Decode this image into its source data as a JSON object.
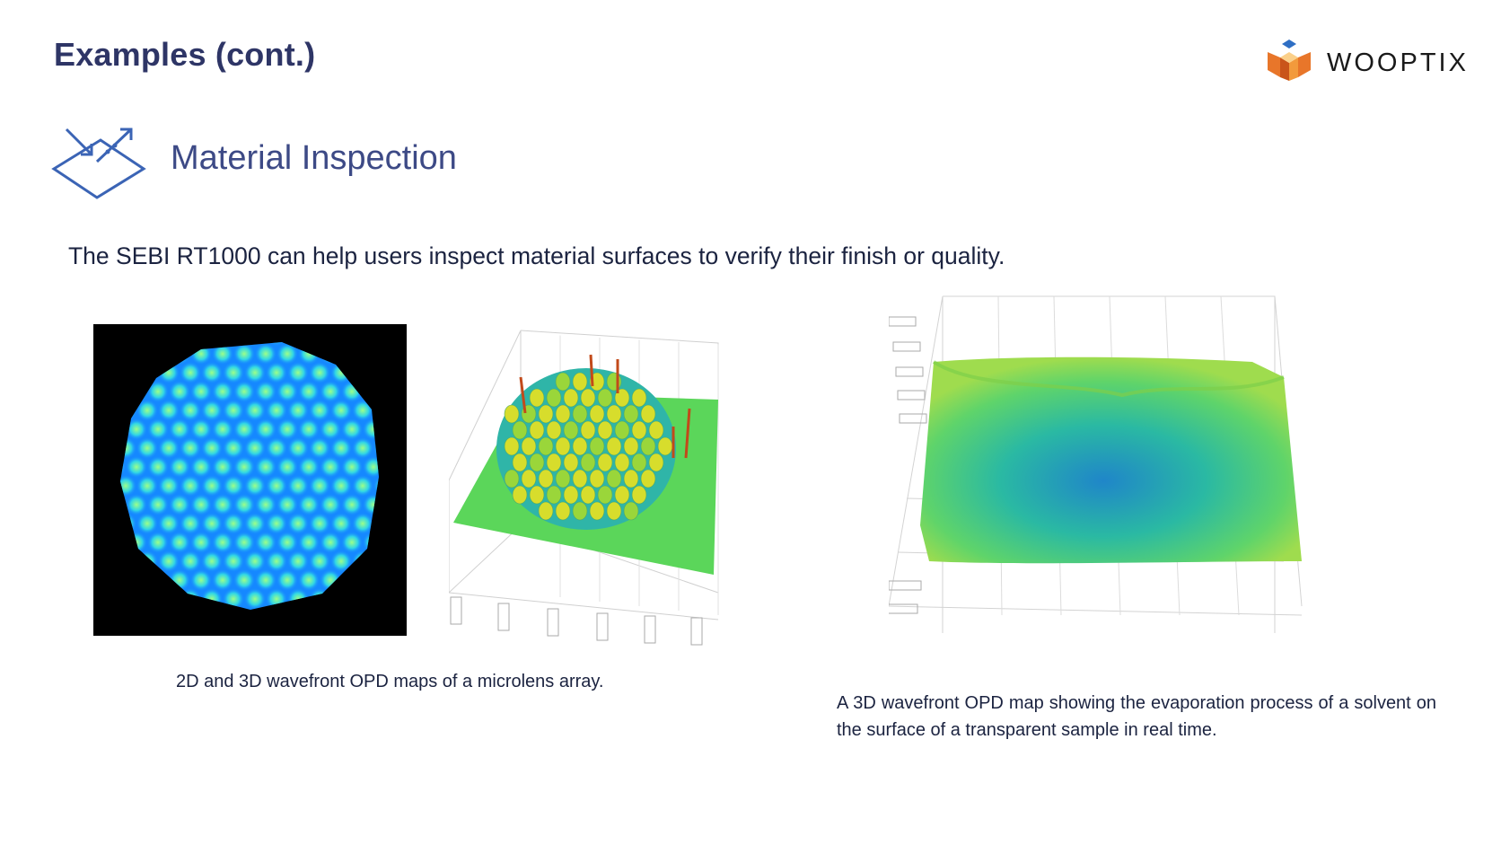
{
  "slide": {
    "title": "Examples (cont.)",
    "brand_name": "WOOPTIX",
    "section_title": "Material Inspection",
    "intro": "The SEBI RT1000 can help users inspect material surfaces to verify their finish or quality."
  },
  "icons": {
    "section": "material-inspection-icon",
    "brand": "wooptix-logo"
  },
  "figures": [
    {
      "caption": "2D and 3D wavefront OPD maps of a microlens array."
    },
    {
      "caption": "A 3D wavefront OPD map showing the evaporation process of a solvent on the surface of a transparent sample in real time."
    }
  ],
  "colors": {
    "title": "#2e3566",
    "section": "#3d4a86",
    "icon": "#3b64b5",
    "logo_orange": "#e8762a",
    "logo_blue": "#2f6fc4"
  }
}
